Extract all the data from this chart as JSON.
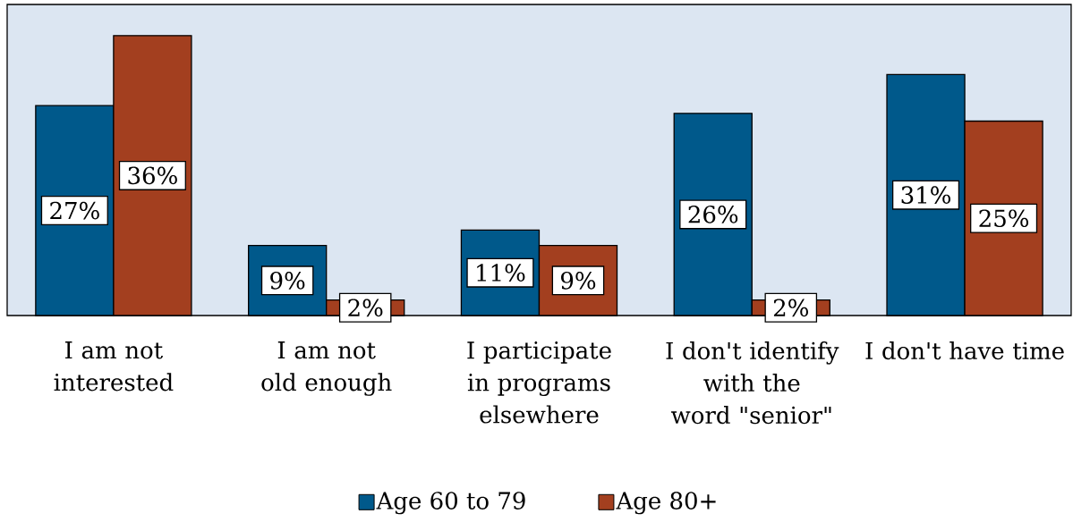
{
  "chart_data": {
    "type": "bar",
    "categories": [
      "I am not interested",
      "I am not old enough",
      "I participate in programs elsewhere",
      "I don't identify with the word \"senior\"",
      "I don't have time"
    ],
    "series": [
      {
        "name": "Age 60 to 79",
        "color": "#00598b",
        "values": [
          27,
          9,
          11,
          26,
          31
        ],
        "value_labels": [
          "27%",
          "9%",
          "11%",
          "26%",
          "31%"
        ]
      },
      {
        "name": "Age 80+",
        "color": "#a33f1f",
        "values": [
          36,
          2,
          9,
          2,
          25
        ],
        "value_labels": [
          "36%",
          "2%",
          "9%",
          "2%",
          "25%"
        ]
      }
    ],
    "ylim": [
      0,
      40
    ],
    "tick_labels": "x",
    "legend": "bottom"
  }
}
